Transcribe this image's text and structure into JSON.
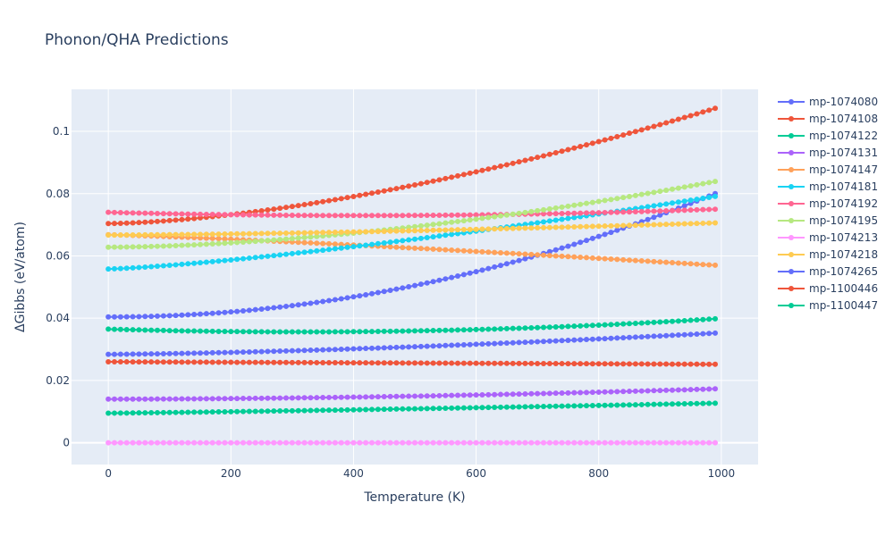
{
  "chart_data": {
    "type": "line",
    "title": "Phonon/QHA Predictions",
    "xlabel": "Temperature (K)",
    "ylabel": "ΔGibbs (eV/atom)",
    "xlim": [
      -60,
      1060
    ],
    "ylim": [
      -0.007,
      0.1135
    ],
    "x_ticks": [
      0,
      200,
      400,
      600,
      800,
      1000
    ],
    "x_tick_labels": [
      "0",
      "200",
      "400",
      "600",
      "800",
      "1000"
    ],
    "y_ticks": [
      0,
      0.02,
      0.04,
      0.06,
      0.08,
      0.1
    ],
    "y_tick_labels": [
      "0",
      "0.02",
      "0.04",
      "0.06",
      "0.08",
      "0.1"
    ],
    "grid": true,
    "legend_position": "right",
    "x_sampling": {
      "start": 0,
      "end": 990,
      "step": 10
    },
    "series": [
      {
        "name": "mp-1074080",
        "color": "#636efa",
        "curve": "power",
        "a": 0.0404,
        "b": 0.0396,
        "p": 2.0
      },
      {
        "name": "mp-1074108",
        "color": "#EF553B",
        "curve": "power",
        "a": 0.0704,
        "b": 0.037,
        "p": 1.6
      },
      {
        "name": "mp-1074122",
        "color": "#00cc96",
        "curve": "quad",
        "a": 0.0365,
        "b": -0.0057,
        "c": 0.009
      },
      {
        "name": "mp-1074131",
        "color": "#ab63fa",
        "curve": "power",
        "a": 0.014,
        "b": 0.0033,
        "p": 1.8
      },
      {
        "name": "mp-1074147",
        "color": "#FFA15A",
        "curve": "power",
        "a": 0.0668,
        "b": -0.0098,
        "p": 1.2
      },
      {
        "name": "mp-1074181",
        "color": "#19d3f3",
        "curve": "power",
        "a": 0.0558,
        "b": 0.0233,
        "p": 1.3
      },
      {
        "name": "mp-1074192",
        "color": "#FF6692",
        "curve": "quad",
        "a": 0.074,
        "b": -0.005,
        "c": 0.006
      },
      {
        "name": "mp-1074195",
        "color": "#B6E880",
        "curve": "power",
        "a": 0.0628,
        "b": 0.0211,
        "p": 1.7
      },
      {
        "name": "mp-1074213",
        "color": "#FF97FF",
        "curve": "power",
        "a": 0.0,
        "b": 0.0,
        "p": 1.0
      },
      {
        "name": "mp-1074218",
        "color": "#FECB52",
        "curve": "power",
        "a": 0.0667,
        "b": 0.0039,
        "p": 1.5
      },
      {
        "name": "mp-1074265",
        "color": "#636efa",
        "curve": "power",
        "a": 0.0284,
        "b": 0.0068,
        "p": 1.5
      },
      {
        "name": "mp-1100446",
        "color": "#EF553B",
        "curve": "power",
        "a": 0.026,
        "b": -0.0008,
        "p": 1.0
      },
      {
        "name": "mp-1100447",
        "color": "#00cc96",
        "curve": "power",
        "a": 0.0095,
        "b": 0.0032,
        "p": 1.2
      }
    ]
  }
}
